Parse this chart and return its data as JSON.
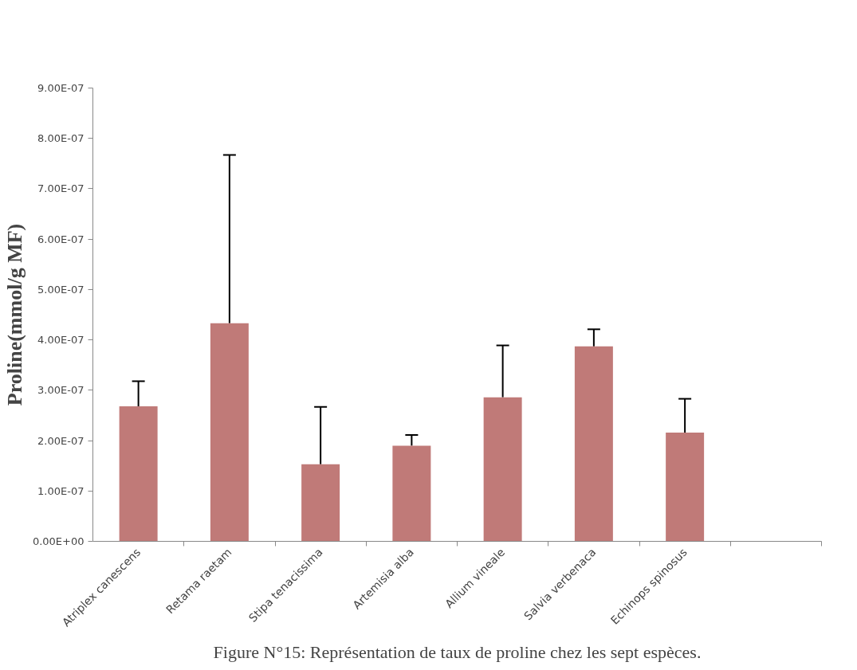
{
  "chart_data": {
    "type": "bar",
    "ylabel": "Proline(mmol/g MF)",
    "categories": [
      "Atriplex canescens",
      "Retama raetam",
      "Stipa tenacissima",
      "Artemisia alba",
      "Allium vineale",
      "Salvia verbenaca",
      "Echinops spinosus",
      null
    ],
    "values": [
      2.68e-07,
      4.33e-07,
      1.53e-07,
      1.9e-07,
      2.86e-07,
      3.87e-07,
      2.16e-07,
      null
    ],
    "errors": [
      [
        2.68e-07,
        3.18e-07
      ],
      [
        4.33e-07,
        7.67e-07
      ],
      [
        1.53e-07,
        2.67e-07
      ],
      [
        1.9e-07,
        2.11e-07
      ],
      [
        2.86e-07,
        3.89e-07
      ],
      [
        3.87e-07,
        4.21e-07
      ],
      [
        2.16e-07,
        2.83e-07
      ],
      null
    ],
    "color": "#c07a78",
    "ylim": [
      0,
      9e-07
    ],
    "yticks": [
      {
        "value": 0,
        "label": "0.00E+00"
      },
      {
        "value": 1e-07,
        "label": "1.00E-07"
      },
      {
        "value": 2e-07,
        "label": "2.00E-07"
      },
      {
        "value": 3e-07,
        "label": "3.00E-07"
      },
      {
        "value": 4e-07,
        "label": "4.00E-07"
      },
      {
        "value": 5e-07,
        "label": "5.00E-07"
      },
      {
        "value": 6e-07,
        "label": "6.00E-07"
      },
      {
        "value": 7e-07,
        "label": "7.00E-07"
      },
      {
        "value": 8e-07,
        "label": "8.00E-07"
      },
      {
        "value": 9e-07,
        "label": "9.00E-07"
      }
    ],
    "grid": false,
    "annotations": [
      "Figure N°15: Représentation de taux de proline chez les sept espèces."
    ]
  }
}
